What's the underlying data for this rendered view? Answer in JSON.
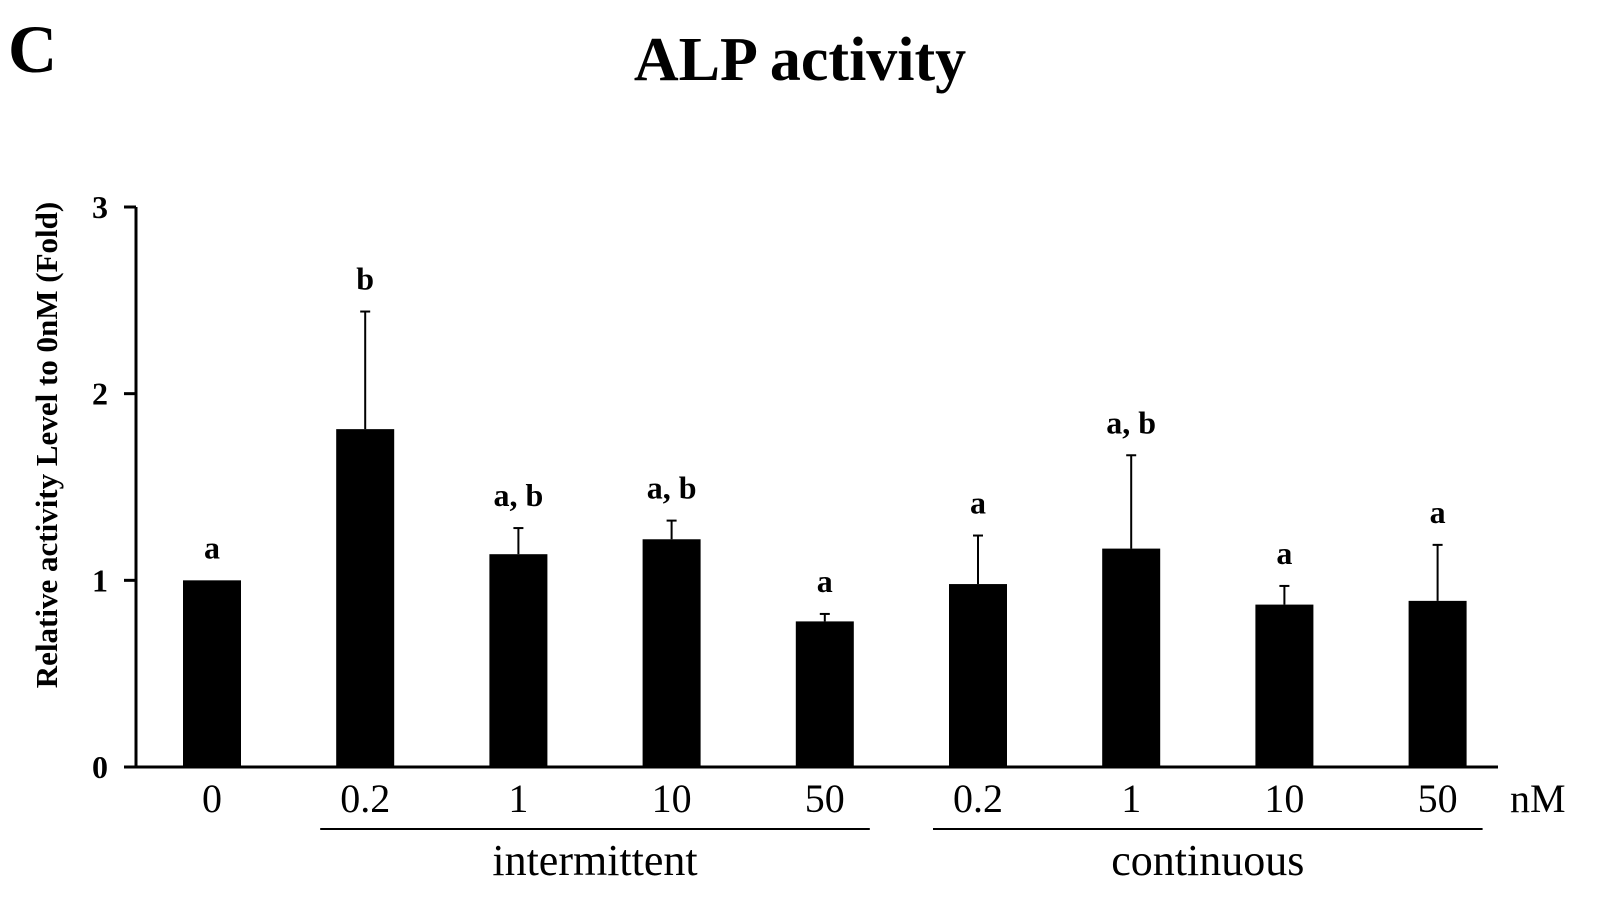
{
  "panel_label": "C",
  "unit_label": "nM",
  "groups": [
    {
      "label": "intermittent",
      "category_indices": [
        1,
        2,
        3,
        4
      ]
    },
    {
      "label": "continuous",
      "category_indices": [
        5,
        6,
        7,
        8
      ]
    }
  ],
  "colors": {
    "bar": "#000000",
    "axis": "#000000",
    "text": "#000000",
    "background": "#ffffff"
  },
  "chart_data": {
    "type": "bar",
    "title": "ALP activity",
    "ylabel": "Relative activity Level to 0nM (Fold)",
    "xlabel": "",
    "ylim": [
      0,
      3
    ],
    "yticks": [
      0,
      1,
      2,
      3
    ],
    "grid": false,
    "categories": [
      "0",
      "0.2",
      "1",
      "10",
      "50",
      "0.2",
      "1",
      "10",
      "50"
    ],
    "values": [
      1.0,
      1.81,
      1.14,
      1.22,
      0.78,
      0.98,
      1.17,
      0.87,
      0.89
    ],
    "errors": [
      0,
      0.63,
      0.14,
      0.1,
      0.04,
      0.26,
      0.5,
      0.1,
      0.3
    ],
    "annotations": [
      "a",
      "b",
      "a, b",
      "a, b",
      "a",
      "a",
      "a, b",
      "a",
      "a"
    ]
  }
}
